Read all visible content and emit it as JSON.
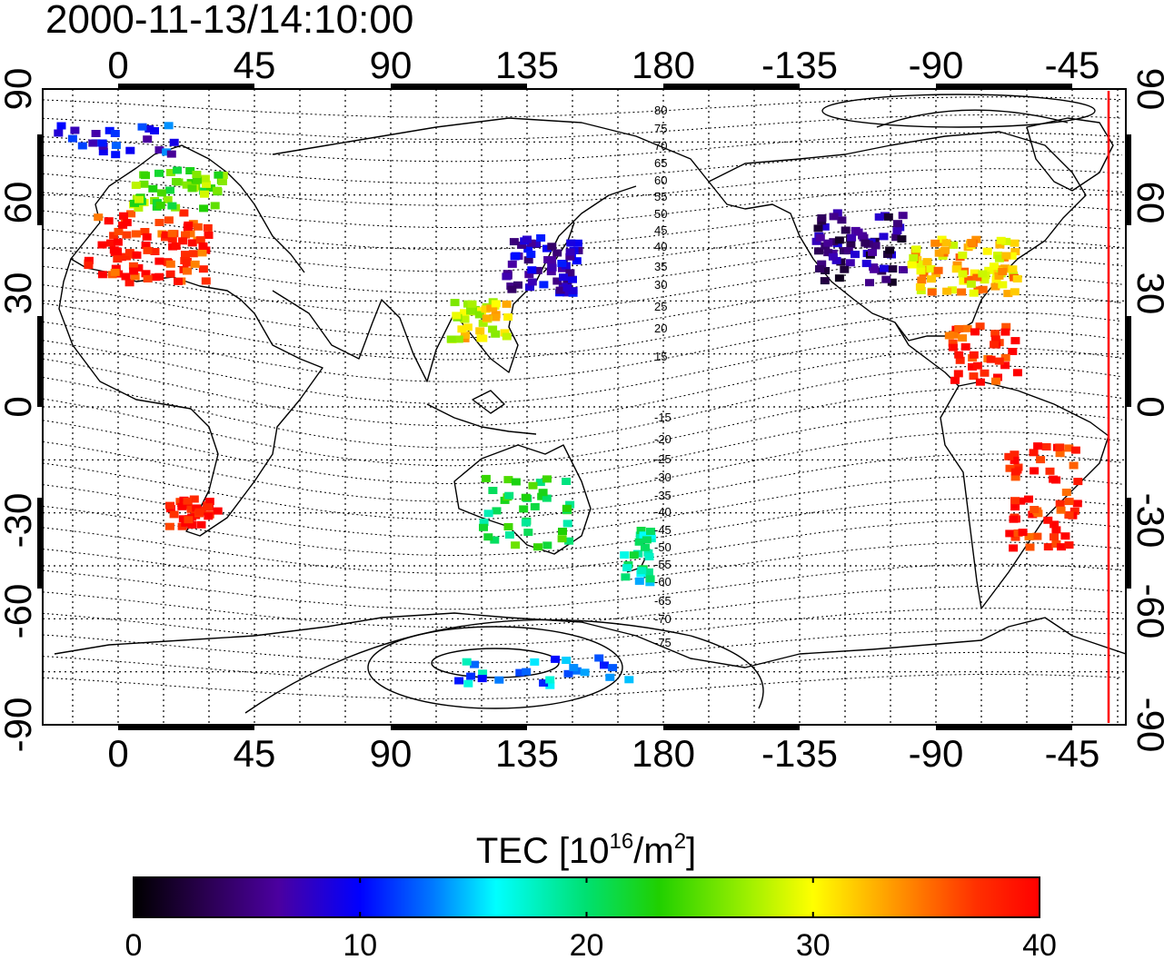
{
  "timestamp": "2000-11-13/14:10:00",
  "axes": {
    "lon_ticks_top": [
      "0",
      "45",
      "90",
      "135",
      "180",
      "-135",
      "-90",
      "-45"
    ],
    "lon_ticks_bottom": [
      "0",
      "45",
      "90",
      "135",
      "180",
      "-135",
      "-90",
      "-45"
    ],
    "lat_ticks_left": [
      "90",
      "60",
      "30",
      "0",
      "-30",
      "-60",
      "-90"
    ],
    "lat_ticks_right": [
      "90",
      "60",
      "30",
      "0",
      "-30",
      "-60",
      "-90"
    ]
  },
  "contour_labels": [
    "80",
    "75",
    "70",
    "65",
    "60",
    "55",
    "50",
    "45",
    "40",
    "35",
    "30",
    "25",
    "20",
    "15",
    "-15",
    "-20",
    "-25",
    "-30",
    "-35",
    "-40",
    "-45",
    "-50",
    "-55",
    "-60",
    "-65",
    "-70",
    "-75"
  ],
  "colorbar": {
    "title_prefix": "TEC  [10",
    "title_sup1": "16",
    "title_mid": "/m",
    "title_sup2": "2",
    "title_suffix": "]",
    "ticks": [
      "0",
      "10",
      "20",
      "30",
      "40"
    ],
    "min": 0,
    "max": 40
  },
  "colors": {
    "terminator_line": "#ff0000",
    "frame": "#000000"
  },
  "measurement_clusters": [
    {
      "region": "Europe",
      "lon": 10,
      "lat": 45,
      "tec": 38
    },
    {
      "region": "Scandinavia",
      "lon": 20,
      "lat": 62,
      "tec": 25
    },
    {
      "region": "North Atlantic",
      "lon": 0,
      "lat": 75,
      "tec": 10
    },
    {
      "region": "Japan",
      "lon": 140,
      "lat": 40,
      "tec": 7
    },
    {
      "region": "East China",
      "lon": 120,
      "lat": 25,
      "tec": 30
    },
    {
      "region": "North America west",
      "lon": -115,
      "lat": 45,
      "tec": 5
    },
    {
      "region": "North America east",
      "lon": -80,
      "lat": 40,
      "tec": 32
    },
    {
      "region": "Caribbean",
      "lon": -75,
      "lat": 15,
      "tec": 38
    },
    {
      "region": "South Africa",
      "lon": 25,
      "lat": -30,
      "tec": 39
    },
    {
      "region": "South America",
      "lon": -55,
      "lat": -25,
      "tec": 39
    },
    {
      "region": "Australia",
      "lon": 135,
      "lat": -30,
      "tec": 22
    },
    {
      "region": "New Zealand",
      "lon": 172,
      "lat": -42,
      "tec": 18
    },
    {
      "region": "Antarctica",
      "lon": 140,
      "lat": -75,
      "tec": 14
    }
  ]
}
